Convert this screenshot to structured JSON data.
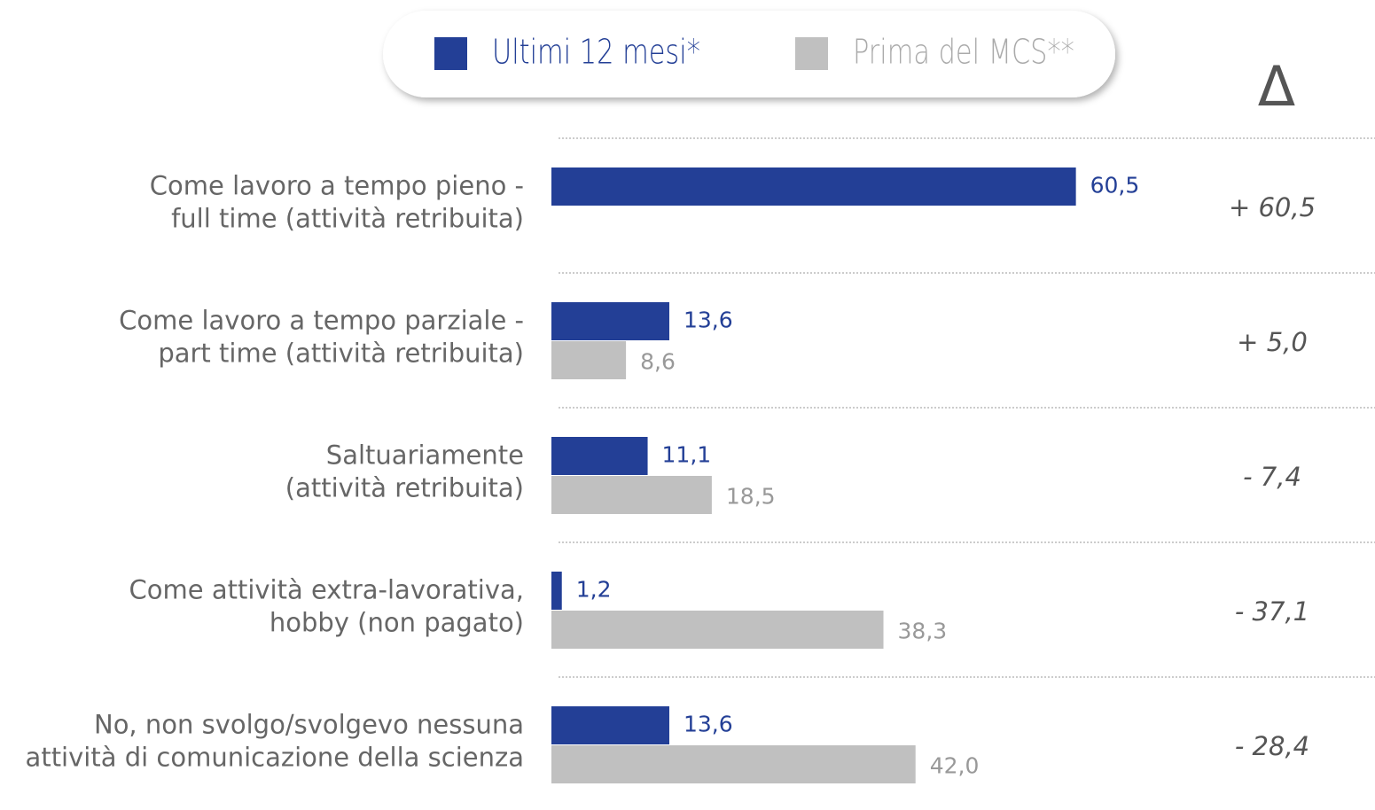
{
  "chart_data": {
    "type": "hbar",
    "categories": [
      "Come lavoro a tempo pieno -\nfull time (attività retribuita)",
      "Come lavoro a tempo parziale -\npart time (attività retribuita)",
      "Saltuariamente\n(attività retribuita)",
      "Come attività extra-lavorativa,\nhobby (non pagato)",
      "No, non svolgo/svolgevo nessuna\nattività di comunicazione della scienza"
    ],
    "series": [
      {
        "name": "Ultimi 12 mesi*",
        "color": "#233f96",
        "values": [
          60.5,
          13.6,
          11.1,
          1.2,
          13.6
        ],
        "value_labels": [
          "60,5",
          "13,6",
          "11,1",
          "1,2",
          "13,6"
        ]
      },
      {
        "name": "Prima del MCS**",
        "color": "#c0c0c0",
        "values": [
          null,
          8.6,
          18.5,
          38.3,
          42.0
        ],
        "value_labels": [
          null,
          "8,6",
          "18,5",
          "38,3",
          "42,0"
        ]
      }
    ],
    "xlim": [
      0,
      95
    ],
    "deltas": {
      "title": "Δ",
      "values": [
        60.5,
        5.0,
        -7.4,
        -37.1,
        -28.4
      ],
      "value_labels": [
        "+ 60,5",
        "+ 5,0",
        "- 7,4",
        "- 37,1",
        "- 28,4"
      ]
    }
  }
}
